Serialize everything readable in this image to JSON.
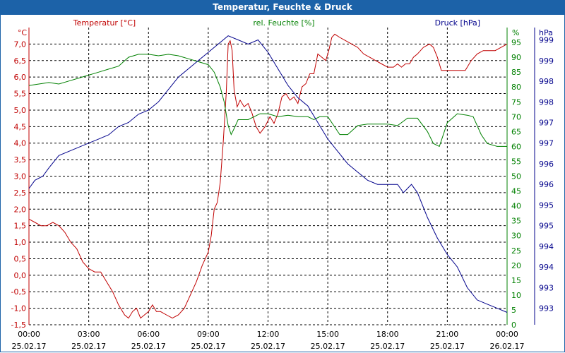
{
  "window": {
    "title": "Temperatur, Feuchte & Druck"
  },
  "colors": {
    "temperature": "#c00000",
    "humidity": "#008000",
    "pressure": "#00008b",
    "title_bar": "#1c62a8",
    "grid": "#000000"
  },
  "chart_data": {
    "type": "line",
    "title": "Temperatur, Feuchte & Druck",
    "grid": true,
    "x": {
      "range_hours": [
        0,
        24
      ],
      "tick_hours": [
        0,
        3,
        6,
        9,
        12,
        15,
        18,
        21,
        24
      ],
      "tick_times": [
        "00:00",
        "03:00",
        "06:00",
        "09:00",
        "12:00",
        "15:00",
        "18:00",
        "21:00",
        "00:00"
      ],
      "tick_dates": [
        "25.02.17",
        "25.02.17",
        "25.02.17",
        "25.02.17",
        "25.02.17",
        "25.02.17",
        "25.02.17",
        "25.02.17",
        "26.02.17"
      ]
    },
    "axes": {
      "temperature": {
        "label": "Temperatur [°C]",
        "unit": "°C",
        "range": [
          -1.5,
          7.5
        ],
        "ticks": [
          -1.5,
          -1.0,
          -0.5,
          0.0,
          0.5,
          1.0,
          1.5,
          2.0,
          2.5,
          3.0,
          3.5,
          4.0,
          4.5,
          5.0,
          5.5,
          6.0,
          6.5,
          7.0
        ],
        "tick_labels": [
          "-1,5",
          "-1,0",
          "-0,5",
          "0,0",
          "0,5",
          "1,0",
          "1,5",
          "2,0",
          "2,5",
          "3,0",
          "3,5",
          "4,0",
          "4,5",
          "5,0",
          "5,5",
          "6,0",
          "6,5",
          "7,0"
        ]
      },
      "humidity": {
        "label": "rel. Feuchte [%]",
        "unit": "%",
        "range": [
          0,
          100
        ],
        "ticks": [
          0,
          5,
          10,
          15,
          20,
          25,
          30,
          35,
          40,
          45,
          50,
          55,
          60,
          65,
          70,
          75,
          80,
          85,
          90,
          95
        ],
        "tick_labels": [
          "0",
          "5",
          "10",
          "15",
          "20",
          "25",
          "30",
          "35",
          "40",
          "45",
          "50",
          "55",
          "60",
          "65",
          "70",
          "75",
          "80",
          "85",
          "90",
          "95"
        ]
      },
      "pressure": {
        "label": "Druck [hPa]",
        "unit": "hPa",
        "range": [
          992.6,
          999.8
        ],
        "ticks": [
          993,
          993.5,
          994,
          994.5,
          995,
          995.5,
          996,
          996.5,
          997,
          997.5,
          998,
          998.5,
          999,
          999.5
        ],
        "tick_labels": [
          "993",
          "993",
          "994",
          "994",
          "995",
          "995",
          "996",
          "996",
          "997",
          "997",
          "998",
          "998",
          "999",
          "999"
        ]
      }
    },
    "series": [
      {
        "name": "Temperatur",
        "axis": "temperature",
        "color": "#c00000",
        "points": [
          [
            0,
            1.7
          ],
          [
            0.3,
            1.6
          ],
          [
            0.6,
            1.5
          ],
          [
            0.9,
            1.5
          ],
          [
            1.2,
            1.6
          ],
          [
            1.5,
            1.5
          ],
          [
            1.8,
            1.3
          ],
          [
            2.1,
            1.0
          ],
          [
            2.4,
            0.8
          ],
          [
            2.7,
            0.4
          ],
          [
            3.0,
            0.2
          ],
          [
            3.3,
            0.1
          ],
          [
            3.6,
            0.1
          ],
          [
            3.9,
            -0.2
          ],
          [
            4.2,
            -0.5
          ],
          [
            4.5,
            -0.9
          ],
          [
            4.8,
            -1.2
          ],
          [
            5.0,
            -1.3
          ],
          [
            5.2,
            -1.1
          ],
          [
            5.4,
            -1.0
          ],
          [
            5.6,
            -1.3
          ],
          [
            5.8,
            -1.2
          ],
          [
            6.0,
            -1.1
          ],
          [
            6.2,
            -0.9
          ],
          [
            6.4,
            -1.1
          ],
          [
            6.6,
            -1.1
          ],
          [
            6.9,
            -1.2
          ],
          [
            7.2,
            -1.3
          ],
          [
            7.5,
            -1.2
          ],
          [
            7.8,
            -1.0
          ],
          [
            8.1,
            -0.6
          ],
          [
            8.4,
            -0.2
          ],
          [
            8.7,
            0.3
          ],
          [
            9.0,
            0.7
          ],
          [
            9.15,
            1.2
          ],
          [
            9.3,
            2.0
          ],
          [
            9.45,
            2.2
          ],
          [
            9.6,
            2.8
          ],
          [
            9.75,
            4.0
          ],
          [
            9.9,
            5.5
          ],
          [
            10.0,
            7.0
          ],
          [
            10.1,
            7.1
          ],
          [
            10.2,
            6.8
          ],
          [
            10.3,
            5.6
          ],
          [
            10.45,
            5.1
          ],
          [
            10.6,
            5.3
          ],
          [
            10.8,
            5.1
          ],
          [
            11.0,
            5.2
          ],
          [
            11.2,
            4.9
          ],
          [
            11.4,
            4.5
          ],
          [
            11.6,
            4.3
          ],
          [
            11.85,
            4.5
          ],
          [
            12.1,
            4.8
          ],
          [
            12.3,
            4.6
          ],
          [
            12.5,
            4.9
          ],
          [
            12.7,
            5.4
          ],
          [
            12.9,
            5.5
          ],
          [
            13.1,
            5.3
          ],
          [
            13.3,
            5.4
          ],
          [
            13.5,
            5.2
          ],
          [
            13.7,
            5.7
          ],
          [
            13.9,
            5.8
          ],
          [
            14.1,
            6.1
          ],
          [
            14.3,
            6.1
          ],
          [
            14.5,
            6.7
          ],
          [
            14.7,
            6.6
          ],
          [
            14.9,
            6.5
          ],
          [
            15.05,
            6.8
          ],
          [
            15.2,
            7.2
          ],
          [
            15.35,
            7.3
          ],
          [
            15.6,
            7.2
          ],
          [
            15.9,
            7.1
          ],
          [
            16.2,
            7.0
          ],
          [
            16.5,
            6.9
          ],
          [
            16.8,
            6.7
          ],
          [
            17.1,
            6.6
          ],
          [
            17.4,
            6.5
          ],
          [
            17.7,
            6.4
          ],
          [
            18.0,
            6.3
          ],
          [
            18.3,
            6.3
          ],
          [
            18.5,
            6.4
          ],
          [
            18.7,
            6.3
          ],
          [
            18.9,
            6.4
          ],
          [
            19.1,
            6.4
          ],
          [
            19.3,
            6.6
          ],
          [
            19.5,
            6.7
          ],
          [
            19.8,
            6.9
          ],
          [
            20.1,
            7.0
          ],
          [
            20.3,
            6.9
          ],
          [
            20.5,
            6.6
          ],
          [
            20.7,
            6.2
          ],
          [
            21.0,
            6.2
          ],
          [
            21.3,
            6.2
          ],
          [
            21.6,
            6.2
          ],
          [
            21.9,
            6.2
          ],
          [
            22.2,
            6.5
          ],
          [
            22.5,
            6.7
          ],
          [
            22.8,
            6.8
          ],
          [
            23.1,
            6.8
          ],
          [
            23.4,
            6.8
          ],
          [
            23.7,
            6.9
          ],
          [
            24.0,
            7.0
          ]
        ]
      },
      {
        "name": "rel. Feuchte",
        "axis": "humidity",
        "color": "#008000",
        "points": [
          [
            0,
            80.5
          ],
          [
            0.5,
            81.0
          ],
          [
            1.0,
            81.5
          ],
          [
            1.5,
            81.0
          ],
          [
            2.0,
            82.0
          ],
          [
            2.5,
            83.0
          ],
          [
            3.0,
            84.0
          ],
          [
            3.5,
            85.0
          ],
          [
            4.0,
            86.0
          ],
          [
            4.5,
            87.0
          ],
          [
            5.0,
            90.0
          ],
          [
            5.5,
            91.0
          ],
          [
            6.0,
            91.0
          ],
          [
            6.5,
            90.5
          ],
          [
            7.0,
            91.0
          ],
          [
            7.5,
            90.5
          ],
          [
            8.0,
            89.5
          ],
          [
            8.5,
            88.5
          ],
          [
            9.0,
            87.5
          ],
          [
            9.3,
            85.0
          ],
          [
            9.6,
            80.0
          ],
          [
            9.8,
            75.0
          ],
          [
            10.0,
            67.0
          ],
          [
            10.15,
            64.0
          ],
          [
            10.3,
            66.0
          ],
          [
            10.5,
            69.0
          ],
          [
            11.0,
            69.0
          ],
          [
            11.3,
            70.0
          ],
          [
            11.6,
            71.0
          ],
          [
            12.0,
            71.0
          ],
          [
            12.5,
            70.0
          ],
          [
            13.0,
            70.5
          ],
          [
            13.5,
            70.0
          ],
          [
            14.0,
            70.0
          ],
          [
            14.3,
            69.0
          ],
          [
            14.6,
            70.0
          ],
          [
            15.0,
            70.0
          ],
          [
            15.3,
            67.0
          ],
          [
            15.6,
            64.0
          ],
          [
            16.0,
            64.0
          ],
          [
            16.5,
            67.0
          ],
          [
            17.0,
            67.5
          ],
          [
            17.5,
            67.5
          ],
          [
            18.0,
            67.5
          ],
          [
            18.5,
            67.0
          ],
          [
            19.0,
            69.5
          ],
          [
            19.5,
            69.5
          ],
          [
            20.0,
            65.0
          ],
          [
            20.3,
            61.0
          ],
          [
            20.6,
            60.0
          ],
          [
            21.0,
            68.0
          ],
          [
            21.5,
            71.0
          ],
          [
            22.0,
            70.5
          ],
          [
            22.3,
            70.0
          ],
          [
            22.7,
            64.0
          ],
          [
            23.0,
            61.0
          ],
          [
            23.5,
            60.0
          ],
          [
            24.0,
            60.0
          ]
        ]
      },
      {
        "name": "Druck",
        "axis": "pressure",
        "color": "#00008b",
        "points": [
          [
            0,
            995.9
          ],
          [
            0.3,
            996.1
          ],
          [
            0.7,
            996.2
          ],
          [
            1.0,
            996.4
          ],
          [
            1.5,
            996.7
          ],
          [
            2.0,
            996.8
          ],
          [
            2.5,
            996.9
          ],
          [
            3.0,
            997.0
          ],
          [
            3.5,
            997.1
          ],
          [
            4.0,
            997.2
          ],
          [
            4.5,
            997.4
          ],
          [
            5.0,
            997.5
          ],
          [
            5.5,
            997.7
          ],
          [
            6.0,
            997.8
          ],
          [
            6.5,
            998.0
          ],
          [
            7.0,
            998.3
          ],
          [
            7.5,
            998.6
          ],
          [
            8.0,
            998.8
          ],
          [
            8.5,
            999.0
          ],
          [
            9.0,
            999.2
          ],
          [
            9.5,
            999.4
          ],
          [
            10.0,
            999.6
          ],
          [
            10.5,
            999.5
          ],
          [
            11.0,
            999.4
          ],
          [
            11.5,
            999.5
          ],
          [
            12.0,
            999.2
          ],
          [
            12.5,
            998.8
          ],
          [
            13.0,
            998.4
          ],
          [
            13.5,
            998.1
          ],
          [
            14.0,
            997.9
          ],
          [
            14.5,
            997.5
          ],
          [
            15.0,
            997.1
          ],
          [
            15.5,
            996.8
          ],
          [
            16.0,
            996.5
          ],
          [
            16.5,
            996.3
          ],
          [
            17.0,
            996.1
          ],
          [
            17.5,
            996.0
          ],
          [
            18.0,
            996.0
          ],
          [
            18.5,
            996.0
          ],
          [
            18.8,
            995.8
          ],
          [
            19.2,
            996.0
          ],
          [
            19.5,
            995.8
          ],
          [
            20.0,
            995.2
          ],
          [
            20.5,
            994.7
          ],
          [
            21.0,
            994.3
          ],
          [
            21.5,
            994.0
          ],
          [
            22.0,
            993.5
          ],
          [
            22.5,
            993.2
          ],
          [
            23.0,
            993.1
          ],
          [
            23.5,
            993.0
          ],
          [
            24.0,
            992.9
          ]
        ]
      }
    ]
  }
}
